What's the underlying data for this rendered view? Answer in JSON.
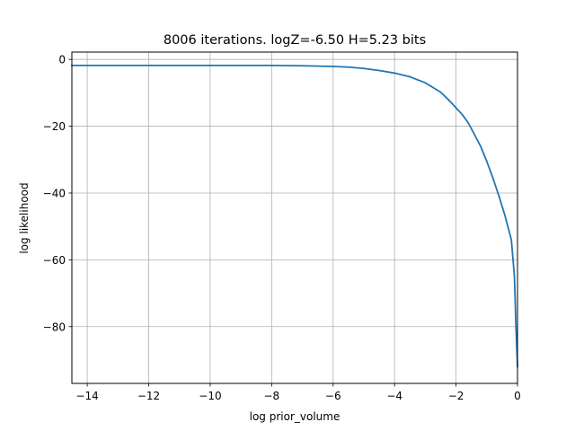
{
  "chart_data": {
    "type": "line",
    "title": "8006 iterations. logZ=-6.50 H=5.23 bits",
    "xlabel": "log prior_volume",
    "ylabel": "log likelihood",
    "xlim": [
      -14.5,
      0.0
    ],
    "ylim": [
      -97.0,
      2.2
    ],
    "grid": true,
    "xticks": [
      -14,
      -12,
      -10,
      -8,
      -6,
      -4,
      -2,
      0
    ],
    "xtick_labels": [
      "−14",
      "−12",
      "−10",
      "−8",
      "−6",
      "−4",
      "−2",
      "0"
    ],
    "yticks": [
      0,
      -20,
      -40,
      -60,
      -80
    ],
    "ytick_labels": [
      "0",
      "−20",
      "−40",
      "−60",
      "−80"
    ],
    "series": [
      {
        "color": "#1f77b4",
        "x": [
          -14.5,
          -12.0,
          -10.0,
          -8.0,
          -7.0,
          -6.0,
          -5.5,
          -5.0,
          -4.5,
          -4.0,
          -3.5,
          -3.0,
          -2.5,
          -2.2,
          -2.0,
          -1.8,
          -1.6,
          -1.4,
          -1.2,
          -1.0,
          -0.8,
          -0.6,
          -0.4,
          -0.2,
          -0.1,
          -0.05,
          0.0
        ],
        "y": [
          -1.8,
          -1.8,
          -1.8,
          -1.8,
          -1.9,
          -2.1,
          -2.3,
          -2.7,
          -3.3,
          -4.1,
          -5.2,
          -7.0,
          -9.8,
          -12.5,
          -14.5,
          -16.5,
          -19.0,
          -22.5,
          -26.0,
          -30.5,
          -35.5,
          -41.0,
          -47.0,
          -54.0,
          -65.0,
          -80.0,
          -92.0
        ]
      }
    ]
  }
}
